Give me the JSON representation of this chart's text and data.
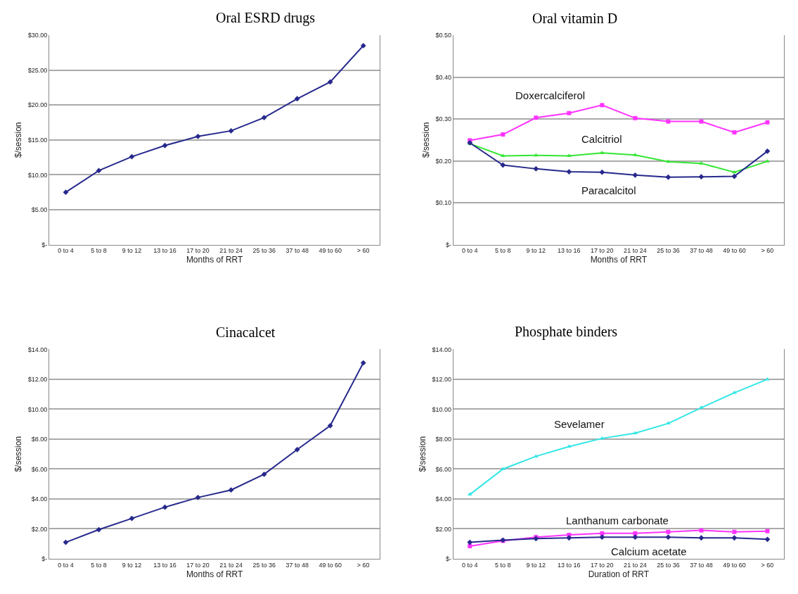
{
  "chart_data": [
    {
      "type": "line",
      "title": "Oral ESRD drugs",
      "xlabel": "Months of RRT",
      "ylabel": "$/session",
      "categories": [
        "0 to 4",
        "5 to 8",
        "9 to 12",
        "13 to 16",
        "17 to 20",
        "21 to 24",
        "25 to 36",
        "37 to 48",
        "49 to 60",
        "> 60"
      ],
      "series": [
        {
          "color": "#27298c",
          "marker": "diamond",
          "values": [
            7.5,
            10.6,
            12.6,
            14.2,
            15.5,
            16.3,
            18.2,
            20.9,
            23.3,
            28.5
          ]
        }
      ],
      "ylim": [
        0,
        30
      ],
      "yticks": [
        {
          "value": 0,
          "label": "$-"
        },
        {
          "value": 5,
          "label": "$5.00"
        },
        {
          "value": 10,
          "label": "$10.00"
        },
        {
          "value": 15,
          "label": "$15.00"
        },
        {
          "value": 20,
          "label": "$20.00"
        },
        {
          "value": 25,
          "label": "$25.00"
        },
        {
          "value": 30,
          "label": "$30.00"
        }
      ],
      "grid": "y",
      "legend": false
    },
    {
      "type": "line",
      "title": "Oral vitamin D",
      "xlabel": "Months of RRT",
      "ylabel": "$/session",
      "categories": [
        "0 to 4",
        "5 to 8",
        "9 to 12",
        "13 to 16",
        "17 to 20",
        "21 to 24",
        "25 to 36",
        "37 to 48",
        "49 to 60",
        "> 60"
      ],
      "series": [
        {
          "name": "Doxercalciferol",
          "color": "#ff33ff",
          "marker": "square",
          "values": [
            0.249,
            0.263,
            0.303,
            0.314,
            0.333,
            0.302,
            0.294,
            0.294,
            0.268,
            0.292
          ]
        },
        {
          "name": "Calcitriol",
          "color": "#33e633",
          "marker": "triangle",
          "values": [
            0.241,
            0.212,
            0.213,
            0.212,
            0.219,
            0.214,
            0.198,
            0.194,
            0.173,
            0.199
          ]
        },
        {
          "name": "Paracalcitol",
          "color": "#27298c",
          "marker": "diamond",
          "values": [
            0.243,
            0.19,
            0.181,
            0.174,
            0.173,
            0.166,
            0.161,
            0.162,
            0.163,
            0.223
          ]
        }
      ],
      "ylim": [
        0,
        0.5
      ],
      "yticks": [
        {
          "value": 0,
          "label": "$-"
        },
        {
          "value": 0.1,
          "label": "$0.10"
        },
        {
          "value": 0.2,
          "label": "$0.20"
        },
        {
          "value": 0.3,
          "label": "$0.30"
        },
        {
          "value": 0.4,
          "label": "$0.40"
        },
        {
          "value": 0.5,
          "label": "$0.50"
        }
      ],
      "grid": "y",
      "legend": false
    },
    {
      "type": "line",
      "title": "Cinacalcet",
      "xlabel": "Months of RRT",
      "ylabel": "$/session",
      "categories": [
        "0 to 4",
        "5 to 8",
        "9 to 12",
        "13 to 16",
        "17 to 20",
        "21 to 24",
        "25 to 36",
        "37 to 48",
        "49 to 60",
        "> 60"
      ],
      "series": [
        {
          "color": "#27298c",
          "marker": "diamond",
          "values": [
            1.1,
            1.95,
            2.7,
            3.45,
            4.1,
            4.6,
            5.65,
            7.3,
            8.9,
            13.1
          ]
        }
      ],
      "ylim": [
        0,
        14
      ],
      "yticks": [
        {
          "value": 0,
          "label": "$-"
        },
        {
          "value": 2,
          "label": "$2.00"
        },
        {
          "value": 4,
          "label": "$4.00"
        },
        {
          "value": 6,
          "label": "$6.00"
        },
        {
          "value": 8,
          "label": "$8.00"
        },
        {
          "value": 10,
          "label": "$10.00"
        },
        {
          "value": 12,
          "label": "$12.00"
        },
        {
          "value": 14,
          "label": "$14.00"
        }
      ],
      "grid": "y",
      "legend": false
    },
    {
      "type": "line",
      "title": "Phosphate binders",
      "xlabel": "Duration of RRT",
      "ylabel": "$/session",
      "categories": [
        "0 to 4",
        "5 to 8",
        "9 to 12",
        "13 to 16",
        "17 to 20",
        "21 to 24",
        "25 to 36",
        "37 to 48",
        "49 to 60",
        "> 60"
      ],
      "series": [
        {
          "name": "Sevelamer",
          "color": "#33e6e6",
          "marker": "triangle",
          "values": [
            4.3,
            6.0,
            6.85,
            7.5,
            8.05,
            8.4,
            9.05,
            10.1,
            11.1,
            12.0
          ]
        },
        {
          "name": "Lanthanum carbonate",
          "color": "#ff33ff",
          "marker": "square",
          "values": [
            0.85,
            1.2,
            1.45,
            1.6,
            1.7,
            1.7,
            1.8,
            1.9,
            1.8,
            1.85
          ]
        },
        {
          "name": "Calcium acetate",
          "color": "#27298c",
          "marker": "diamond",
          "values": [
            1.1,
            1.25,
            1.35,
            1.4,
            1.45,
            1.45,
            1.45,
            1.4,
            1.4,
            1.3
          ]
        }
      ],
      "ylim": [
        0,
        14
      ],
      "yticks": [
        {
          "value": 0,
          "label": "$-"
        },
        {
          "value": 2,
          "label": "$2.00"
        },
        {
          "value": 4,
          "label": "$4.00"
        },
        {
          "value": 6,
          "label": "$6.00"
        },
        {
          "value": 8,
          "label": "$8.00"
        },
        {
          "value": 10,
          "label": "$10.00"
        },
        {
          "value": 12,
          "label": "$12.00"
        },
        {
          "value": 14,
          "label": "$14.00"
        }
      ],
      "grid": "y",
      "legend": false
    }
  ]
}
